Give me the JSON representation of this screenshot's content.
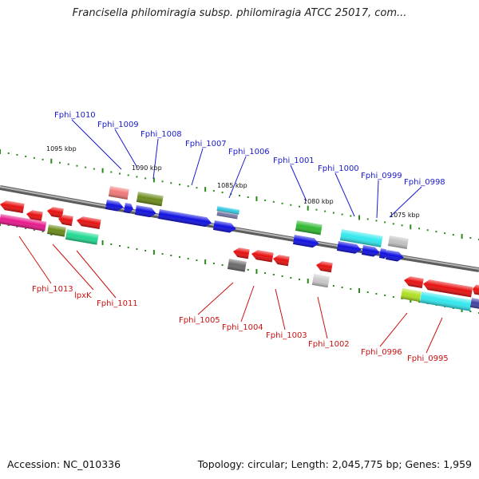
{
  "title": "Francisella philomiragia subsp. philomiragia ATCC 25017, com...",
  "footer": {
    "accession": "Accession: NC_010336",
    "summary": "Topology: circular; Length: 2,045,775 bp; Genes: 1,959"
  },
  "colors": {
    "upper_label": "#1a1ad0",
    "lower_label": "#cc1111",
    "backbone": "#8a8a8a",
    "ticks": "#2a8a1a"
  },
  "kbp_markers": [
    "1095 kbp",
    "1090 kbp",
    "1085 kbp",
    "1080 kbp",
    "1075 kbp"
  ],
  "upper_labels": [
    "Fphi_1010",
    "Fphi_1009",
    "Fphi_1008",
    "Fphi_1007",
    "Fphi_1006",
    "Fphi_1001",
    "Fphi_1000",
    "Fphi_0999",
    "Fphi_0998"
  ],
  "lower_labels": [
    "Fphi_1013",
    "lpxK",
    "Fphi_1011",
    "Fphi_1005",
    "Fphi_1004",
    "Fphi_1003",
    "Fphi_1002",
    "Fphi_0996",
    "Fphi_0995"
  ]
}
